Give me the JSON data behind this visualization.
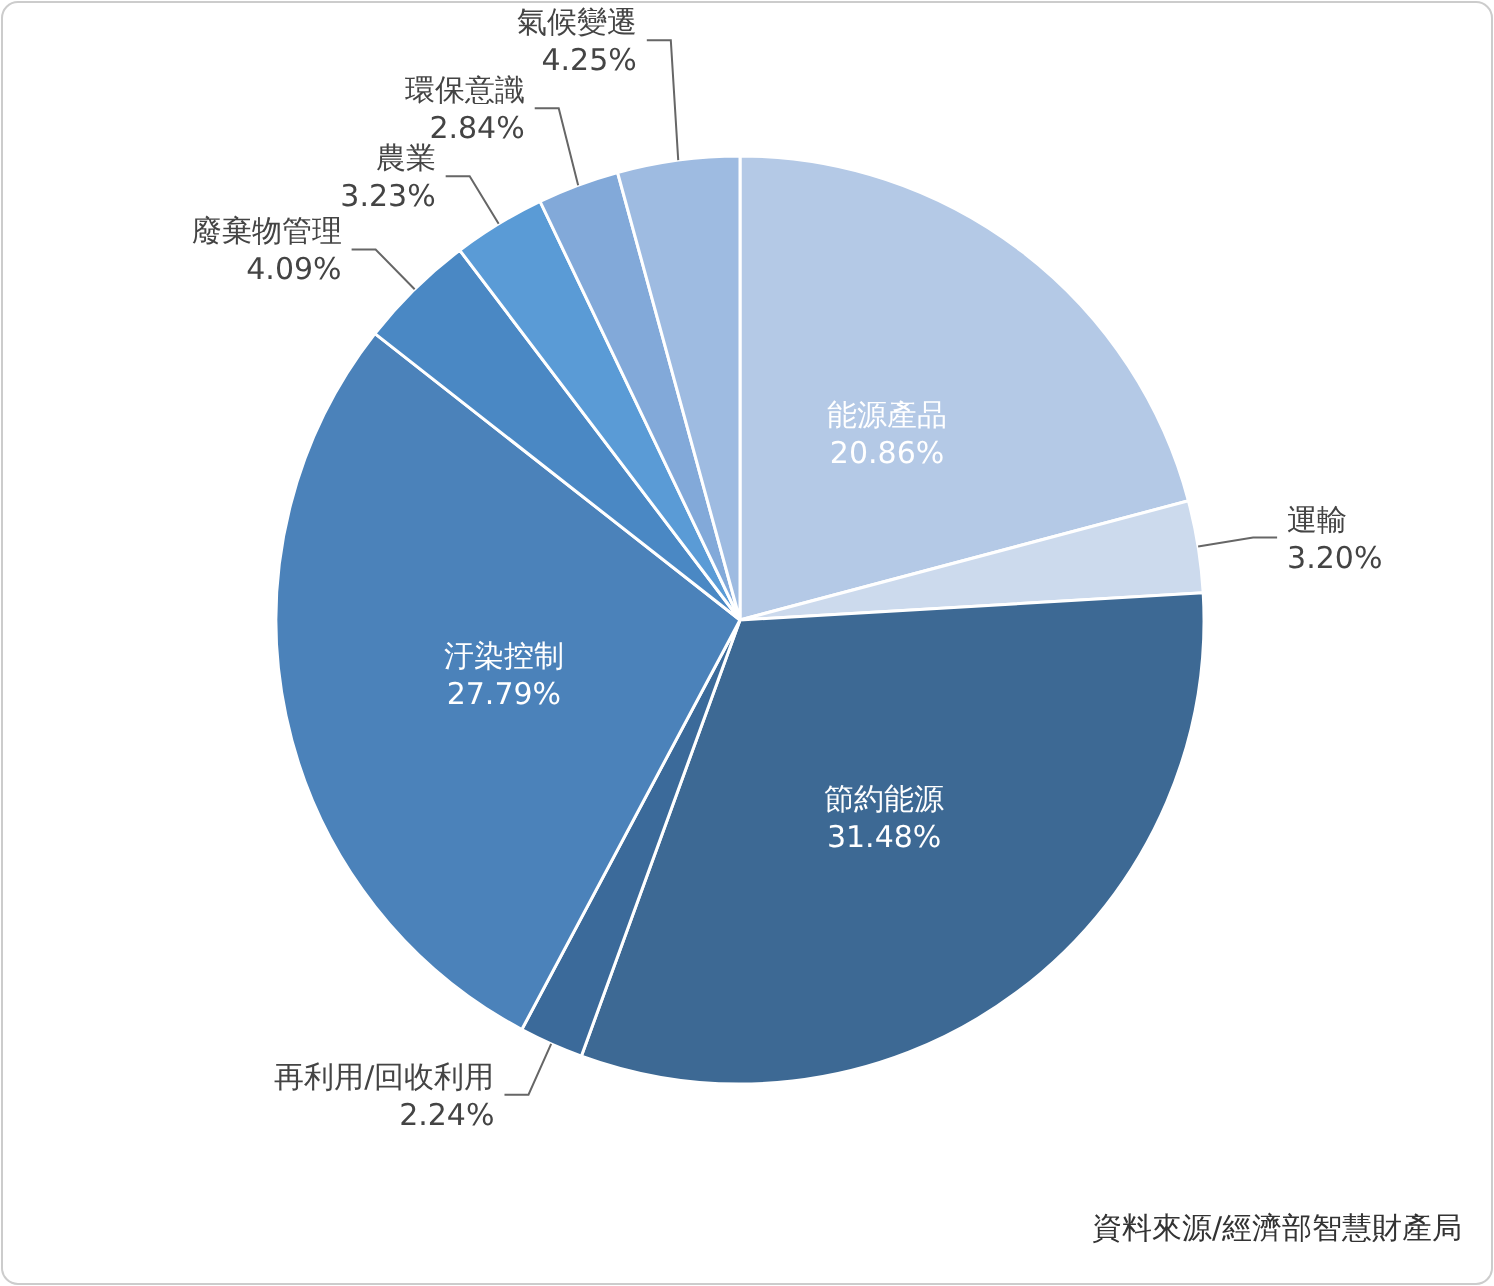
{
  "chart_data": {
    "type": "pie",
    "categories": [
      "能源產品",
      "運輸",
      "節約能源",
      "再利用/回收利用",
      "汙染控制",
      "廢棄物管理",
      "農業",
      "環保意識",
      "氣候變遷"
    ],
    "values": [
      20.86,
      3.2,
      31.48,
      2.24,
      27.79,
      4.09,
      3.23,
      2.84,
      4.25
    ],
    "colors": [
      "#b4c9e6",
      "#ccdaed",
      "#3d6994",
      "#3b6a9a",
      "#4b82ba",
      "#4a88c4",
      "#5a9bd6",
      "#82a9d9",
      "#9ebbe1"
    ],
    "value_labels": [
      "20.86%",
      "3.20%",
      "31.48%",
      "2.24%",
      "27.79%",
      "4.09%",
      "3.23%",
      "2.84%",
      "4.25%"
    ],
    "annotations": [
      "資料來源/經濟部智慧財產局"
    ]
  }
}
